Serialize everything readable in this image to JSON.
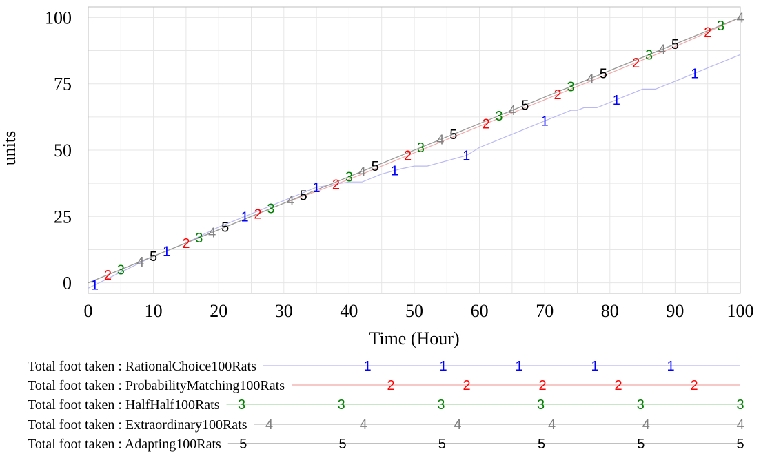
{
  "chart_data": {
    "type": "line",
    "title": "",
    "xlabel": "Time (Hour)",
    "ylabel": "units",
    "xlim": [
      0,
      100
    ],
    "ylim": [
      -4,
      104
    ],
    "x_ticks": [
      "0",
      "10",
      "20",
      "30",
      "40",
      "50",
      "60",
      "70",
      "80",
      "90",
      "100"
    ],
    "y_ticks": [
      "0",
      "25",
      "50",
      "75",
      "100"
    ],
    "grid": true,
    "legend_position": "bottom",
    "series": [
      {
        "name": "Total foot taken : RationalChoice100Rats",
        "marker_label": "1",
        "color": "#0000ff",
        "line_color": "#b8b8f5",
        "x": [
          0,
          5,
          10,
          15,
          20,
          25,
          30,
          35,
          40,
          42,
          45,
          48,
          50,
          52,
          55,
          58,
          60,
          65,
          70,
          72,
          74,
          75,
          76,
          78,
          80,
          85,
          87,
          90,
          95,
          100
        ],
        "y": [
          -2,
          4,
          10,
          15,
          21,
          26,
          31,
          36,
          38,
          38,
          41,
          43,
          44,
          44,
          46,
          48,
          51,
          56,
          61,
          63,
          65,
          65,
          66,
          66,
          68,
          73,
          73,
          76,
          81,
          86
        ]
      },
      {
        "name": "Total foot taken : ProbabilityMatching100Rats",
        "marker_label": "2",
        "color": "#ff0000",
        "line_color": "#f2a8a8",
        "x": [
          0,
          10,
          20,
          30,
          40,
          50,
          60,
          70,
          80,
          90,
          100
        ],
        "y": [
          0,
          10,
          20,
          30,
          39,
          49,
          59,
          69,
          79,
          89,
          100
        ]
      },
      {
        "name": "Total foot taken : HalfHalf100Rats",
        "marker_label": "3",
        "color": "#008000",
        "line_color": "#a8d8a8",
        "x": [
          0,
          10,
          20,
          30,
          40,
          50,
          60,
          70,
          80,
          90,
          100
        ],
        "y": [
          0,
          10,
          20,
          30,
          40,
          50,
          60,
          70,
          80,
          90,
          100
        ]
      },
      {
        "name": "Total foot taken : Extraordinary100Rats",
        "marker_label": "4",
        "color": "#808080",
        "line_color": "#bdbdbd",
        "x": [
          0,
          10,
          20,
          30,
          40,
          50,
          60,
          70,
          80,
          90,
          100
        ],
        "y": [
          0,
          10,
          20,
          30,
          40,
          50,
          60,
          70,
          80,
          90,
          100
        ]
      },
      {
        "name": "Total foot taken : Adapting100Rats",
        "marker_label": "5",
        "color": "#000000",
        "line_color": "#9a9a9a",
        "x": [
          0,
          10,
          20,
          30,
          40,
          50,
          60,
          70,
          80,
          90,
          100
        ],
        "y": [
          0,
          10,
          20,
          30,
          40,
          50,
          60,
          70,
          80,
          90,
          100
        ]
      }
    ],
    "line_markers": [
      {
        "series": 0,
        "x": [
          1,
          12,
          24,
          35,
          47,
          58,
          70,
          81,
          93
        ]
      },
      {
        "series": 1,
        "x": [
          3,
          15,
          26,
          38,
          49,
          61,
          72,
          84,
          95
        ]
      },
      {
        "series": 2,
        "x": [
          5,
          17,
          28,
          40,
          51,
          63,
          74,
          86,
          97
        ]
      },
      {
        "series": 3,
        "x": [
          8,
          19,
          31,
          42,
          54,
          65,
          77,
          88,
          100
        ]
      },
      {
        "series": 4,
        "x": [
          10,
          21,
          33,
          44,
          56,
          67,
          79,
          90
        ]
      }
    ],
    "legend_markers": [
      {
        "series": 0,
        "count": 5
      },
      {
        "series": 1,
        "count": 5
      },
      {
        "series": 2,
        "count": 6
      },
      {
        "series": 3,
        "count": 6
      },
      {
        "series": 4,
        "count": 6
      }
    ]
  }
}
